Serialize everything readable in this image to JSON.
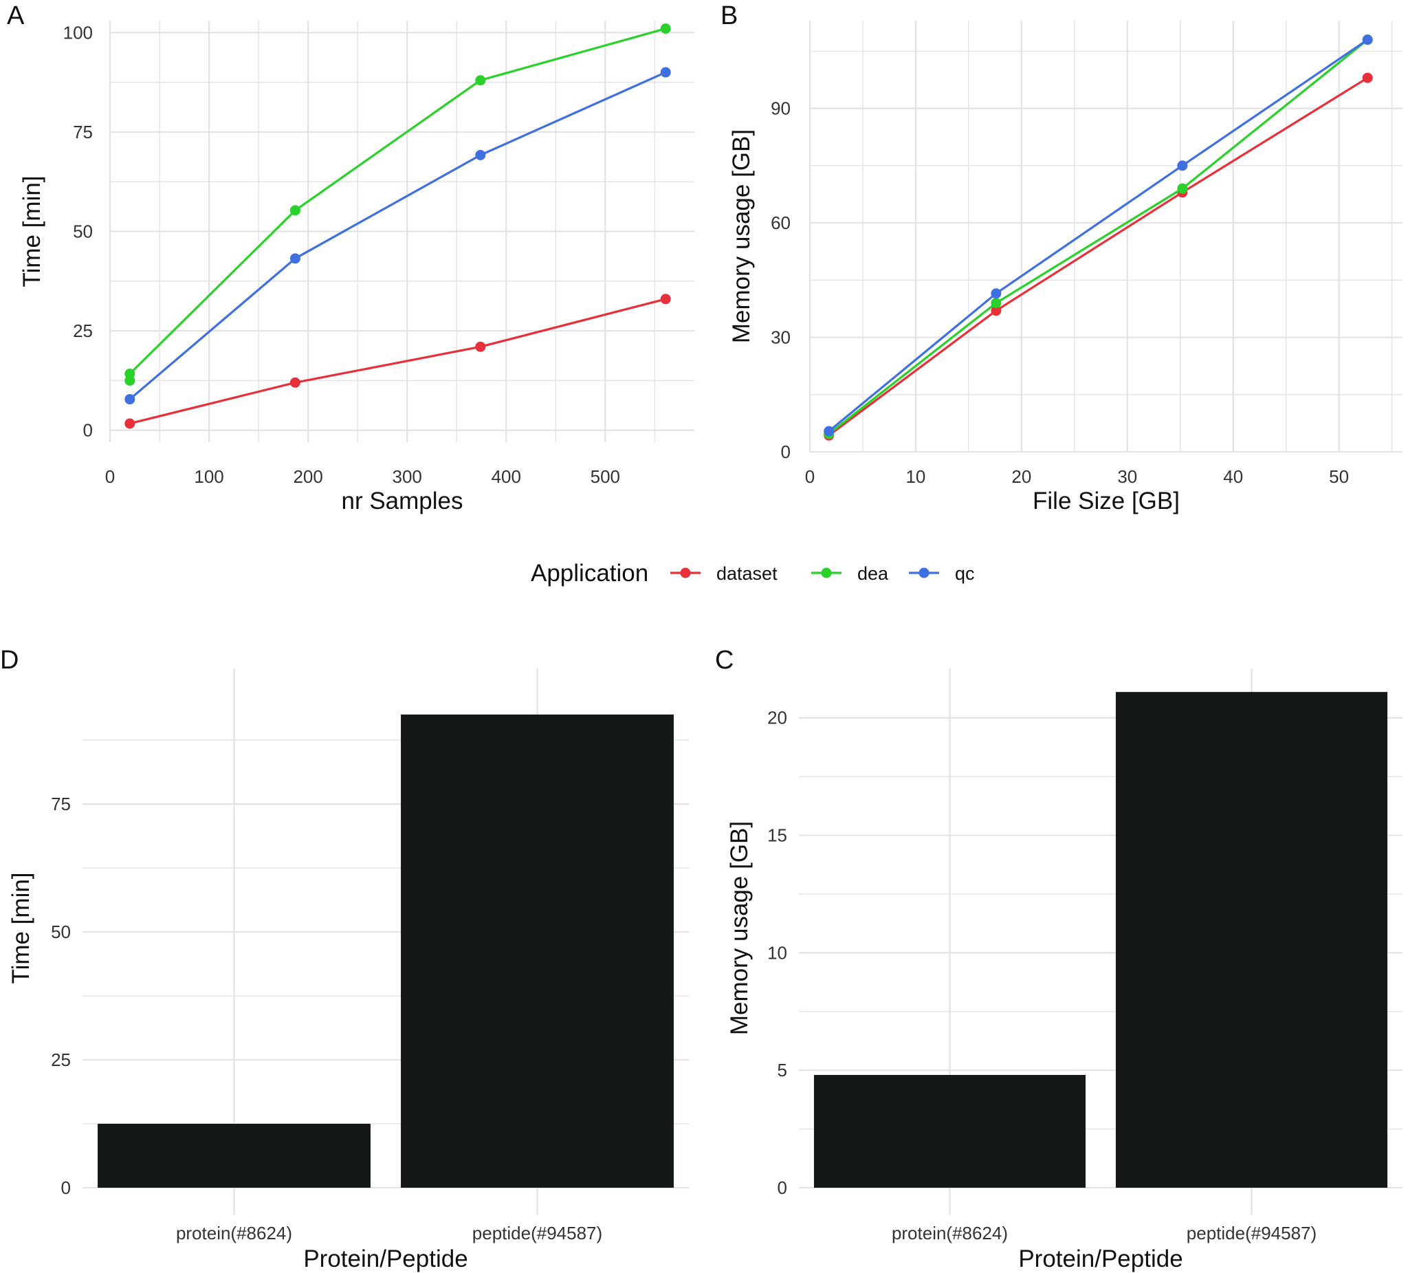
{
  "chart_data": [
    {
      "panel": "A",
      "type": "line",
      "xlabel": "nr Samples",
      "ylabel": "Time [min]",
      "xlim": [
        0,
        590
      ],
      "ylim": [
        -3,
        103
      ],
      "xticks": [
        0,
        100,
        200,
        300,
        400,
        500
      ],
      "yticks": [
        0,
        25,
        50,
        75,
        100
      ],
      "series": [
        {
          "name": "dataset",
          "x": [
            20,
            187,
            374,
            561
          ],
          "y": [
            1.7,
            12,
            21,
            33
          ]
        },
        {
          "name": "dea",
          "x": [
            20,
            20,
            187,
            374,
            561
          ],
          "y": [
            12.5,
            14.2,
            55.3,
            88,
            101
          ]
        },
        {
          "name": "qc",
          "x": [
            20,
            187,
            374,
            561
          ],
          "y": [
            7.8,
            43.2,
            69.2,
            90
          ]
        }
      ]
    },
    {
      "panel": "B",
      "type": "line",
      "xlabel": "File Size [GB]",
      "ylabel": "Memory usage [GB]",
      "xlim": [
        0,
        56
      ],
      "ylim": [
        0,
        113
      ],
      "xticks": [
        0,
        10,
        20,
        30,
        40,
        50
      ],
      "yticks": [
        0,
        30,
        60,
        90
      ],
      "series": [
        {
          "name": "dataset",
          "x": [
            1.8,
            17.6,
            35.2,
            52.7
          ],
          "y": [
            4.3,
            37,
            68,
            98
          ]
        },
        {
          "name": "dea",
          "x": [
            1.8,
            17.6,
            35.2,
            52.7
          ],
          "y": [
            4.7,
            39,
            69,
            108
          ]
        },
        {
          "name": "qc",
          "x": [
            1.8,
            17.6,
            35.2,
            52.7
          ],
          "y": [
            5.4,
            41.5,
            75,
            108
          ]
        }
      ]
    },
    {
      "panel": "D",
      "type": "bar",
      "xlabel": "Protein/Peptide",
      "ylabel": "Time [min]",
      "categories": [
        "protein(#8624)",
        "peptide(#94587)"
      ],
      "values": [
        12.5,
        92.5
      ],
      "ylim": [
        0,
        101.5
      ],
      "yticks": [
        0,
        25,
        50,
        75
      ]
    },
    {
      "panel": "C",
      "type": "bar",
      "xlabel": "Protein/Peptide",
      "ylabel": "Memory usage [GB]",
      "categories": [
        "protein(#8624)",
        "peptide(#94587)"
      ],
      "values": [
        4.8,
        21.1
      ],
      "ylim": [
        0,
        22.1
      ],
      "yticks": [
        0,
        5,
        10,
        15,
        20
      ]
    }
  ],
  "legend": {
    "title": "Application",
    "position": "center",
    "items": [
      {
        "label": "dataset",
        "color": "#e8303a"
      },
      {
        "label": "dea",
        "color": "#2ad12a"
      },
      {
        "label": "qc",
        "color": "#3f6fe0"
      }
    ]
  },
  "colors": {
    "dataset": "#e8303a",
    "dea": "#2ad12a",
    "qc": "#3f6fe0",
    "bar": "#141816",
    "grid": "#e3e3e3"
  }
}
